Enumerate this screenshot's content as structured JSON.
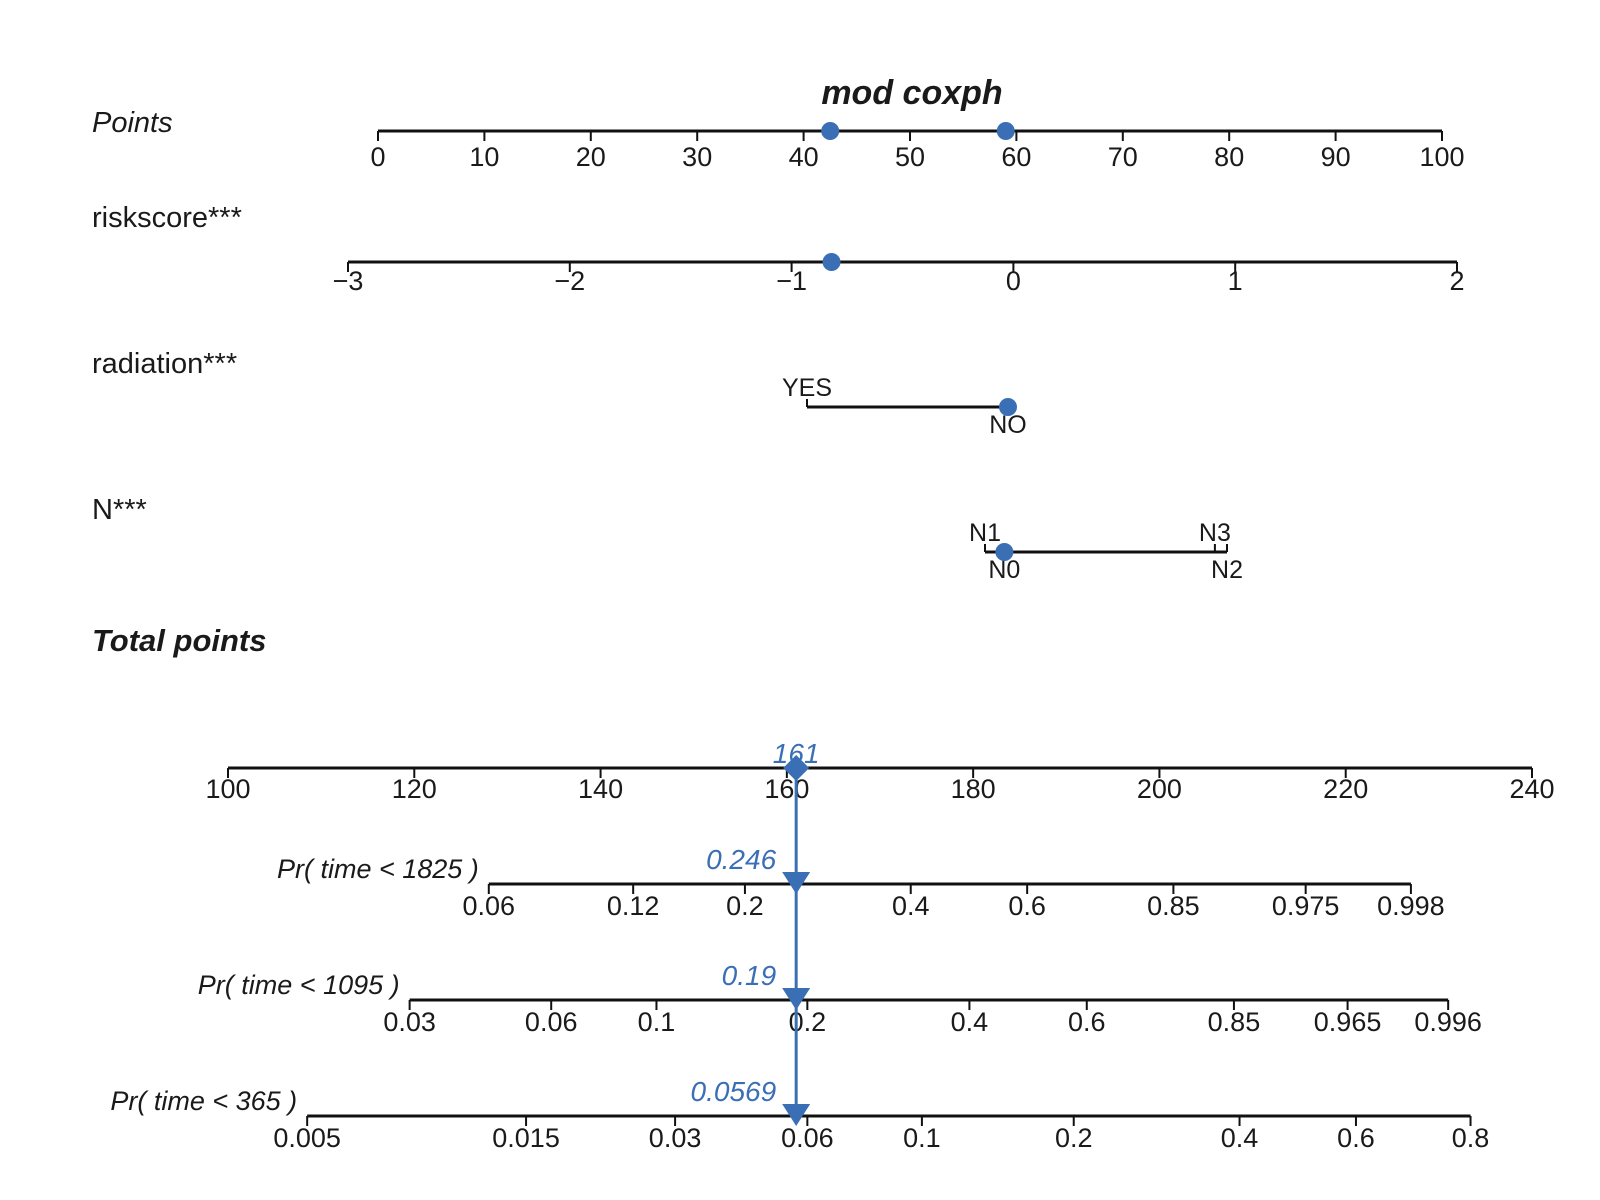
{
  "chart_data": {
    "type": "nomogram",
    "title": "mod coxph",
    "points_axis": {
      "label": "Points",
      "ticks": [
        0,
        10,
        20,
        30,
        40,
        50,
        60,
        70,
        80,
        90,
        100
      ],
      "markers": [
        42.5,
        59
      ]
    },
    "variables": [
      {
        "name": "riskscore***",
        "kind": "continuous",
        "ticks": [
          "−3",
          "−2",
          "−1",
          "0",
          "1",
          "2"
        ],
        "tick_values": [
          -3,
          -2,
          -1,
          0,
          1,
          2
        ],
        "range": [
          -3,
          2
        ],
        "selected": -0.82
      },
      {
        "name": "radiation***",
        "kind": "categorical",
        "levels": [
          {
            "label": "YES",
            "value": 0
          },
          {
            "label": "NO",
            "value": 1
          }
        ],
        "selected": "NO"
      },
      {
        "name": "N***",
        "kind": "categorical",
        "levels": [
          {
            "label": "N1",
            "value": 0
          },
          {
            "label": "N0",
            "value": 0.08
          },
          {
            "label": "N3",
            "value": 0.95
          },
          {
            "label": "N2",
            "value": 1
          }
        ],
        "selected": "N0"
      }
    ],
    "total_points": {
      "label": "Total points",
      "ticks": [
        100,
        120,
        140,
        160,
        180,
        200,
        220,
        240
      ],
      "value": 161,
      "value_label": "161"
    },
    "probabilities": [
      {
        "label": "Pr( time < 1825 )",
        "ticks": [
          "0.06",
          "0.12",
          "0.2",
          "0.4",
          "0.6",
          "0.85",
          "0.975",
          "0.998"
        ],
        "tick_totals": [
          128,
          143.5,
          155.5,
          173.3,
          185.8,
          201.5,
          215.7,
          227
        ],
        "value": 0.246,
        "value_label": "0.246"
      },
      {
        "label": "Pr( time < 1095 )",
        "ticks": [
          "0.03",
          "0.06",
          "0.1",
          "0.2",
          "0.4",
          "0.6",
          "0.85",
          "0.965",
          "0.996"
        ],
        "tick_totals": [
          119.5,
          134.7,
          146,
          162.2,
          179.6,
          192.2,
          208,
          220.2,
          231
        ],
        "value": 0.19,
        "value_label": "0.19"
      },
      {
        "label": "Pr( time < 365 )",
        "ticks": [
          "0.005",
          "0.015",
          "0.03",
          "0.06",
          "0.1",
          "0.2",
          "0.4",
          "0.6",
          "0.8"
        ],
        "tick_totals": [
          108.5,
          132,
          148,
          162.2,
          174.5,
          190.8,
          208.6,
          221.1,
          233.4
        ],
        "value": 0.0569,
        "value_label": "0.0569"
      }
    ]
  }
}
